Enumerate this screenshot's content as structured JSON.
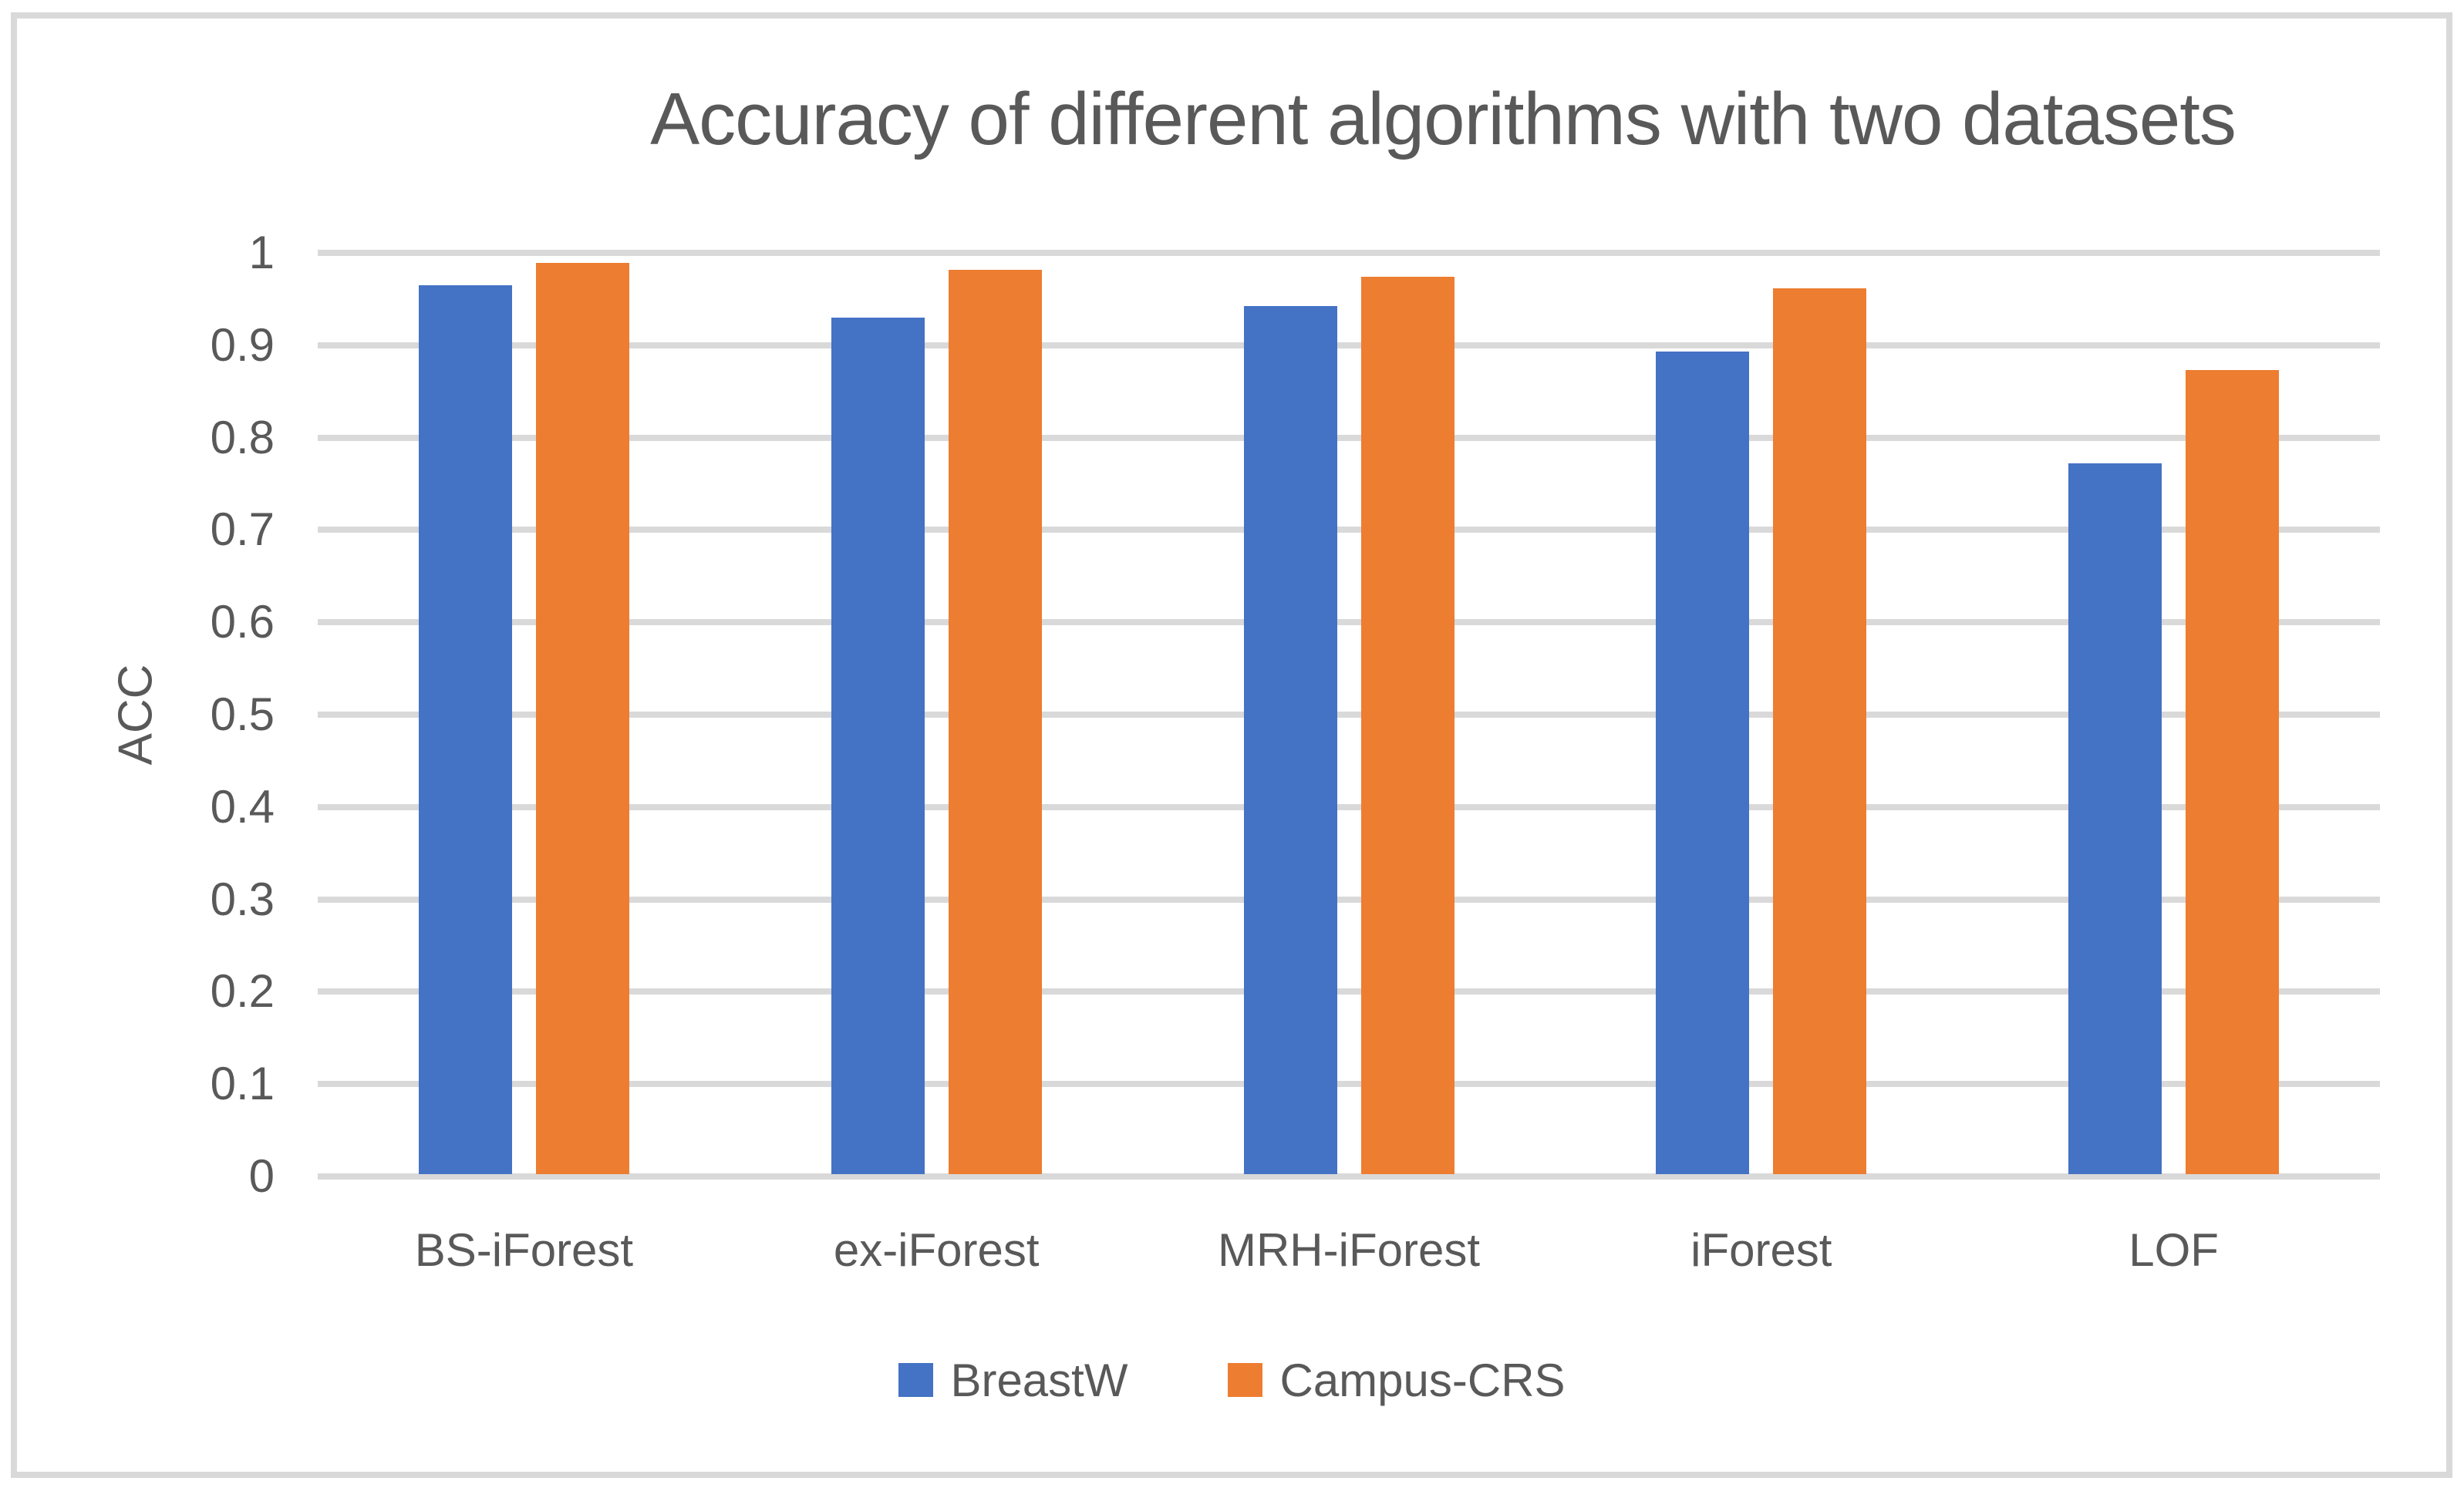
{
  "chart_data": {
    "type": "bar",
    "title": "Accuracy of different algorithms with two datasets",
    "xlabel": "",
    "ylabel": "ACC",
    "categories": [
      "BS-iForest",
      "ex-iForest",
      "MRH-iForest",
      "iForest",
      "LOF"
    ],
    "series": [
      {
        "name": "BreastW",
        "color": "#4472C4",
        "values": [
          0.965,
          0.93,
          0.942,
          0.893,
          0.772
        ]
      },
      {
        "name": "Campus-CRS",
        "color": "#ED7D31",
        "values": [
          0.989,
          0.982,
          0.974,
          0.962,
          0.873
        ]
      }
    ],
    "ylim": [
      0,
      1
    ],
    "yticks": [
      0,
      0.1,
      0.2,
      0.3,
      0.4,
      0.5,
      0.6,
      0.7,
      0.8,
      0.9,
      1
    ],
    "ytick_labels": [
      "0",
      "0.1",
      "0.2",
      "0.3",
      "0.4",
      "0.5",
      "0.6",
      "0.7",
      "0.8",
      "0.9",
      "1"
    ],
    "grid": "horizontal",
    "legend_position": "bottom",
    "legend": [
      "BreastW",
      "Campus-CRS"
    ]
  },
  "colors": {
    "series_blue": "#4472C4",
    "series_orange": "#ED7D31",
    "gridline": "#D9D9D9",
    "frame_border": "#D9D9D9",
    "text": "#595959",
    "background": "#FFFFFF"
  }
}
